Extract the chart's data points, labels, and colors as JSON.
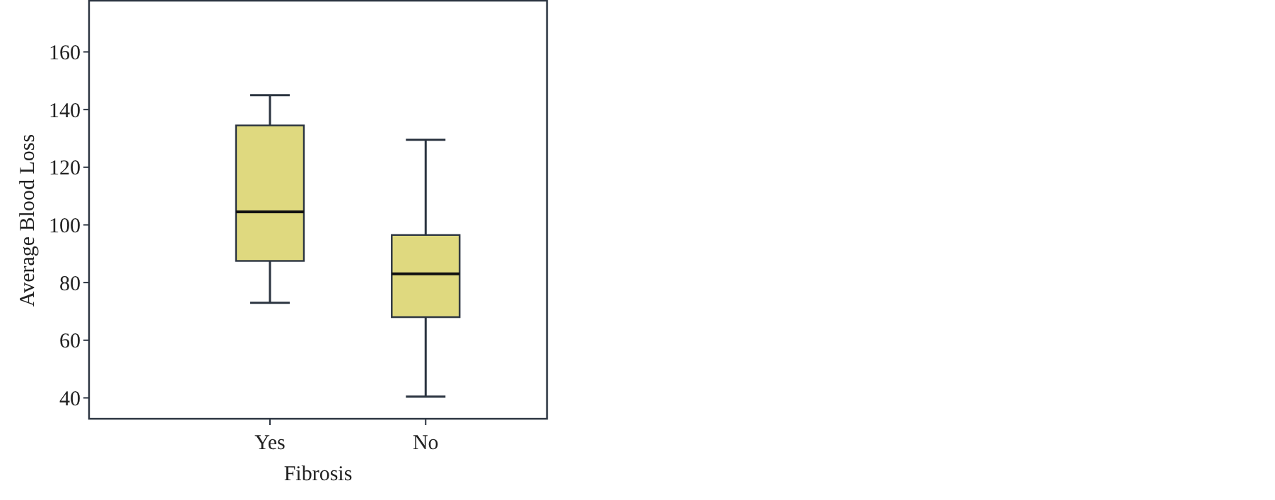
{
  "chart_data": {
    "type": "box",
    "xlabel": "Fibrosis",
    "ylabel": "Average Blood Loss",
    "categories": [
      "Yes",
      "No"
    ],
    "color": "#dfd97f",
    "ylim": [
      33,
      178
    ],
    "yticks": [
      40,
      60,
      80,
      100,
      120,
      140,
      160
    ],
    "grid": false,
    "boxes": [
      {
        "low": 73,
        "q1": 87.5,
        "median": 104.5,
        "q3": 134.5,
        "high": 145
      },
      {
        "low": 40.5,
        "q1": 68,
        "median": 83,
        "q3": 96.5,
        "high": 129.5
      }
    ]
  }
}
